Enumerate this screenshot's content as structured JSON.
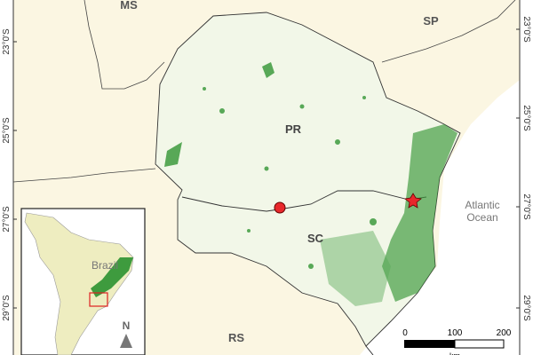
{
  "labels": {
    "ms": "MS",
    "sp": "SP",
    "pr": "PR",
    "sc": "SC",
    "rs": "RS",
    "ocean_line1": "Atlantic",
    "ocean_line2": "Ocean",
    "brazil": "Brazil",
    "north": "N"
  },
  "latitudes_left": [
    "23°0'S",
    "25°0'S",
    "27°0'S",
    "29°0'S"
  ],
  "latitudes_right": [
    "23°0'S",
    "25°0'S",
    "27°0'S",
    "29°0'S"
  ],
  "scale_bar": {
    "ticks": [
      "0",
      "100",
      "200"
    ],
    "unit": "km"
  },
  "colors": {
    "land": "#FBF6E2",
    "forest": "#3E9B3E",
    "study_area": "#F2F7E8",
    "ocean": "#FFFFFF",
    "marker": "#E8282B",
    "inset_land": "#EEEDC0"
  }
}
